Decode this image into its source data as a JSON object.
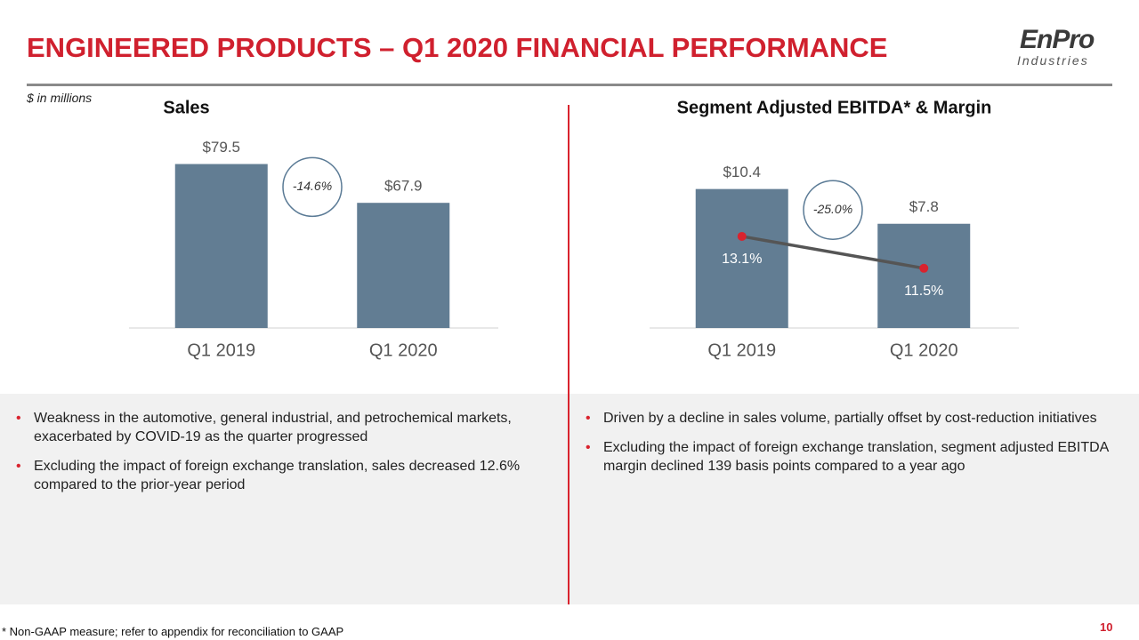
{
  "title": "ENGINEERED PRODUCTS – Q1 2020 FINANCIAL PERFORMANCE",
  "logo": {
    "name": "EnPro",
    "tagline": "Industries"
  },
  "units_note": "$ in millions",
  "chart_data": [
    {
      "type": "bar",
      "title": "Sales",
      "categories": [
        "Q1 2019",
        "Q1 2020"
      ],
      "values": [
        79.5,
        67.9
      ],
      "value_labels": [
        "$79.5",
        "$67.9"
      ],
      "color": "#627d93",
      "ylim": [
        30.5,
        90
      ],
      "annotation": "-14.6%"
    },
    {
      "type": "bar_line",
      "title": "Segment Adjusted EBITDA* & Margin",
      "categories": [
        "Q1 2019",
        "Q1 2020"
      ],
      "values": [
        10.4,
        7.8
      ],
      "value_labels": [
        "$10.4",
        "$7.8"
      ],
      "color": "#627d93",
      "ylim": [
        0,
        14.9
      ],
      "annotation": "-25.0%",
      "line": {
        "values": [
          13.1,
          11.5
        ],
        "value_labels": [
          "13.1%",
          "11.5%"
        ],
        "color": "#555555",
        "marker_color": "#d9232e",
        "axis": "y2"
      },
      "y2lim": [
        8.5,
        18.5
      ]
    }
  ],
  "bullets": [
    [
      "Weakness in the automotive, general industrial, and petrochemical markets, exacerbated by COVID-19 as the quarter progressed",
      "Excluding the impact of foreign exchange translation, sales decreased 12.6% compared to the prior-year period"
    ],
    [
      "Driven by a decline in sales volume, partially offset by cost-reduction initiatives",
      "Excluding the impact of foreign exchange translation, segment adjusted EBITDA margin declined 139 basis points compared to a year ago"
    ]
  ],
  "footnote": "* Non-GAAP measure; refer to appendix for reconciliation to GAAP",
  "page_number": "10"
}
